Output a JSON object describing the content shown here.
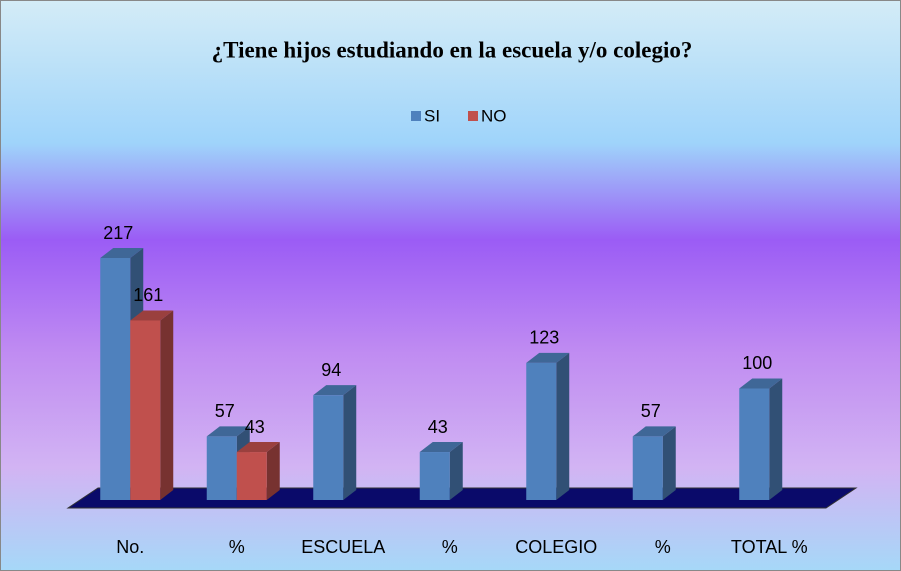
{
  "chart_data": {
    "type": "bar3d",
    "title": "¿Tiene hijos estudiando en la escuela y/o colegio?",
    "categories": [
      "No.",
      "%",
      "ESCUELA",
      "%",
      "COLEGIO",
      "%",
      "TOTAL %"
    ],
    "series": [
      {
        "name": "SI",
        "color": "#4f81bd",
        "values": [
          217,
          57,
          94,
          43,
          123,
          57,
          100
        ]
      },
      {
        "name": "NO",
        "color": "#c0504d",
        "values": [
          161,
          43,
          null,
          null,
          null,
          null,
          null
        ]
      }
    ]
  }
}
